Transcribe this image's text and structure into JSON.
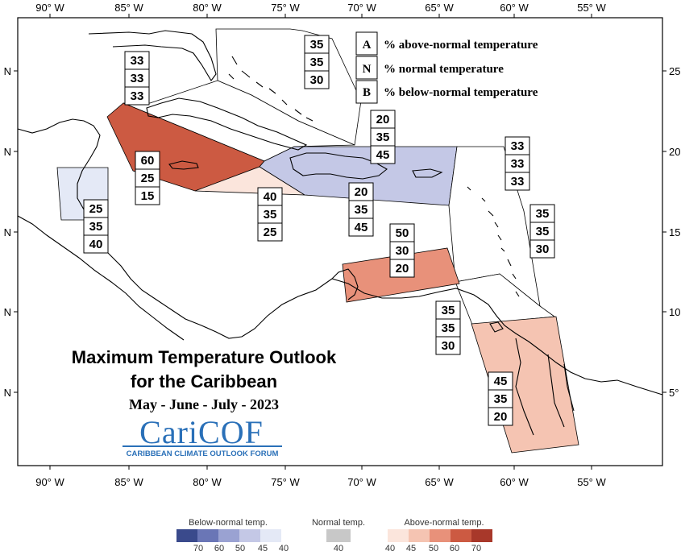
{
  "colors": {
    "above_strong": "#cc5a42",
    "above_moderate": "#e8917a",
    "above_weak": "#f5c4b2",
    "above_faint": "#fbe5dc",
    "below_moderate": "#c4c8e6",
    "below_faint": "#e4e9f6"
  },
  "axes": {
    "lon_ticks": [
      "90° W",
      "85° W",
      "80° W",
      "75° W",
      "70° W",
      "65° W",
      "60° W",
      "55° W"
    ],
    "lat_ticks_left": [
      "N",
      "N",
      "N",
      "N",
      "N"
    ],
    "lat_ticks_right": [
      "25",
      "20",
      "15",
      "10",
      "5°"
    ]
  },
  "legend": {
    "A": {
      "key": "A",
      "text": "% above-normal temperature"
    },
    "N": {
      "key": "N",
      "text": "% normal temperature"
    },
    "B": {
      "key": "B",
      "text": "% below-normal temperature"
    }
  },
  "title": {
    "line1": "Maximum Temperature Outlook",
    "line2": "for the Caribbean",
    "period": "May - June - July - 2023"
  },
  "logo": {
    "name": "CariCOF",
    "subtitle": "CARIBBEAN CLIMATE OUTLOOK FORUM"
  },
  "colorbar": {
    "below_label": "Below-normal temp.",
    "normal_label": "Normal temp.",
    "above_label": "Above-normal temp.",
    "below_ticks": [
      "70",
      "60",
      "50",
      "45",
      "40"
    ],
    "normal_ticks": [
      "40"
    ],
    "above_ticks": [
      "40",
      "45",
      "50",
      "60",
      "70"
    ]
  },
  "zones": [
    {
      "id": "bahamas",
      "A": "35",
      "N": "35",
      "B": "30"
    },
    {
      "id": "cuba",
      "A": "33",
      "N": "33",
      "B": "33"
    },
    {
      "id": "hispaniola-north",
      "A": "20",
      "N": "35",
      "B": "45"
    },
    {
      "id": "leeward",
      "A": "33",
      "N": "33",
      "B": "33"
    },
    {
      "id": "jamaica",
      "A": "60",
      "N": "25",
      "B": "15"
    },
    {
      "id": "hispaniola-south",
      "A": "20",
      "N": "35",
      "B": "45"
    },
    {
      "id": "cayman",
      "A": "40",
      "N": "35",
      "B": "25"
    },
    {
      "id": "belize",
      "A": "25",
      "N": "35",
      "B": "40"
    },
    {
      "id": "windward",
      "A": "35",
      "N": "35",
      "B": "30"
    },
    {
      "id": "abc-islands",
      "A": "50",
      "N": "30",
      "B": "20"
    },
    {
      "id": "trinidad",
      "A": "35",
      "N": "35",
      "B": "30"
    },
    {
      "id": "guianas",
      "A": "45",
      "N": "35",
      "B": "20"
    }
  ]
}
